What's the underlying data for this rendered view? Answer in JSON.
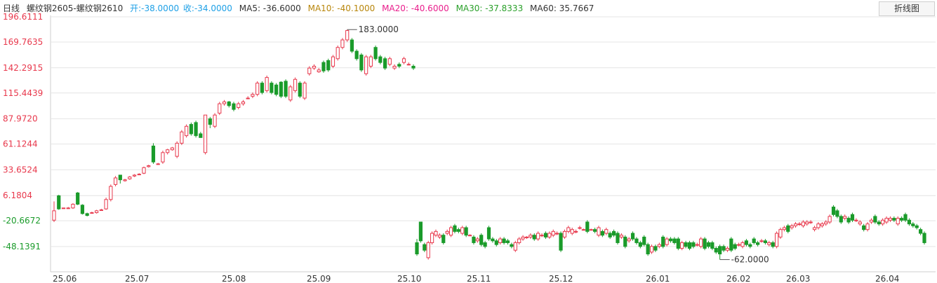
{
  "header": {
    "period": "日线",
    "symbol": "螺纹钢2605-螺纹钢2610",
    "open": "开:-38.0000",
    "close": "收:-34.0000",
    "ma5": "MA5: -36.6000",
    "ma10": "MA10: -40.1000",
    "ma20": "MA20: -40.6000",
    "ma30": "MA30: -37.8333",
    "ma60": "MA60: 35.7667"
  },
  "toolbar": {
    "switch_label": "折线图"
  },
  "colors": {
    "up": "#e8384c",
    "down": "#1a9b2a",
    "grid": "#e4e4e4",
    "axis_positive": "#e8384c",
    "axis_negative": "#1a9b2a",
    "ma5": "#333333",
    "ma10": "#b8860b",
    "ma20": "#e91e8c",
    "ma30": "#2aa02a",
    "ma60": "#333333"
  },
  "chart_data": {
    "type": "candlestick",
    "y_ticks": [
      "196.6111",
      "169.7635",
      "142.2915",
      "115.4439",
      "87.9720",
      "61.1244",
      "33.6524",
      "6.1804",
      "-20.6672",
      "-48.1391"
    ],
    "x_ticks": [
      "25.06",
      "25.07",
      "25.08",
      "25.09",
      "25.10",
      "25.11",
      "25.12",
      "26.01",
      "26.02",
      "26.03",
      "26.04"
    ],
    "ylim": [
      -75,
      205
    ],
    "max_annotation": "183.0000",
    "min_annotation": "-62.0000",
    "candles": [
      [
        -20,
        -10,
        -22,
        0
      ],
      [
        6,
        -8,
        -9,
        7
      ],
      [
        -7,
        -7,
        -7,
        -7
      ],
      [
        -7,
        -7,
        -8,
        -6
      ],
      [
        -7,
        -3,
        -8,
        -2
      ],
      [
        9,
        -3,
        -4,
        10
      ],
      [
        -4,
        -13,
        -14,
        -3
      ],
      [
        -13,
        -15,
        -16,
        -12
      ],
      [
        -12,
        -12,
        -13,
        -11
      ],
      [
        -12,
        -10,
        -13,
        -9
      ],
      [
        -9,
        -9,
        -10,
        -8
      ],
      [
        -8,
        2,
        -9,
        4
      ],
      [
        2,
        16,
        0,
        18
      ],
      [
        18,
        25,
        16,
        27
      ],
      [
        28,
        23,
        19,
        28
      ],
      [
        22,
        23,
        21,
        24
      ],
      [
        24,
        26,
        23,
        27
      ],
      [
        27,
        28,
        26,
        29
      ],
      [
        29,
        29,
        28,
        30
      ],
      [
        30,
        36,
        29,
        37
      ],
      [
        37,
        38,
        36,
        39
      ],
      [
        59,
        42,
        40,
        62
      ],
      [
        40,
        40,
        39,
        41
      ],
      [
        42,
        52,
        40,
        54
      ],
      [
        52,
        55,
        50,
        56
      ],
      [
        55,
        57,
        54,
        58
      ],
      [
        48,
        62,
        46,
        64
      ],
      [
        62,
        74,
        60,
        76
      ],
      [
        70,
        80,
        68,
        82
      ],
      [
        82,
        72,
        70,
        84
      ],
      [
        84,
        70,
        68,
        86
      ],
      [
        72,
        68,
        70,
        74
      ],
      [
        52,
        92,
        50,
        92
      ],
      [
        88,
        82,
        78,
        90
      ],
      [
        80,
        92,
        78,
        94
      ],
      [
        94,
        104,
        92,
        106
      ],
      [
        104,
        106,
        102,
        108
      ],
      [
        106,
        102,
        100,
        107
      ],
      [
        104,
        98,
        96,
        106
      ],
      [
        100,
        104,
        98,
        106
      ],
      [
        104,
        106,
        102,
        108
      ],
      [
        110,
        110,
        110,
        112
      ],
      [
        112,
        114,
        110,
        116
      ],
      [
        114,
        126,
        112,
        128
      ],
      [
        126,
        116,
        114,
        128
      ],
      [
        118,
        132,
        116,
        134
      ],
      [
        126,
        116,
        114,
        128
      ],
      [
        124,
        114,
        112,
        126
      ],
      [
        127,
        112,
        110,
        128
      ],
      [
        128,
        112,
        110,
        130
      ],
      [
        108,
        122,
        106,
        124
      ],
      [
        118,
        130,
        116,
        132
      ],
      [
        126,
        112,
        110,
        128
      ],
      [
        110,
        126,
        108,
        128
      ],
      [
        136,
        142,
        134,
        144
      ],
      [
        142,
        144,
        140,
        146
      ],
      [
        138,
        140,
        137,
        142
      ],
      [
        148,
        139,
        137,
        150
      ],
      [
        150,
        140,
        138,
        152
      ],
      [
        144,
        154,
        142,
        156
      ],
      [
        152,
        164,
        150,
        166
      ],
      [
        164,
        172,
        162,
        174
      ],
      [
        172,
        182,
        170,
        183
      ],
      [
        172,
        160,
        158,
        174
      ],
      [
        160,
        152,
        150,
        162
      ],
      [
        156,
        140,
        138,
        158
      ],
      [
        136,
        154,
        134,
        156
      ],
      [
        144,
        154,
        142,
        156
      ],
      [
        164,
        152,
        150,
        166
      ],
      [
        154,
        148,
        146,
        156
      ],
      [
        152,
        142,
        140,
        154
      ],
      [
        146,
        152,
        144,
        154
      ],
      [
        142,
        144,
        140,
        146
      ],
      [
        146,
        144,
        142,
        148
      ],
      [
        148,
        152,
        146,
        154
      ],
      [
        146,
        146,
        145,
        148
      ],
      [
        144,
        142,
        140,
        146
      ],
      [
        -44,
        -56,
        -58,
        -40
      ],
      [
        -22,
        -42,
        -44,
        -22
      ],
      [
        -46,
        -52,
        -54,
        -44
      ],
      [
        -60,
        -44,
        -62,
        -42
      ],
      [
        -44,
        -34,
        -46,
        -32
      ],
      [
        -36,
        -32,
        -38,
        -30
      ],
      [
        -38,
        -36,
        -40,
        -34
      ],
      [
        -36,
        -44,
        -46,
        -34
      ],
      [
        -34,
        -32,
        -36,
        -30
      ],
      [
        -36,
        -28,
        -38,
        -26
      ],
      [
        -26,
        -32,
        -34,
        -24
      ],
      [
        -30,
        -32,
        -34,
        -28
      ],
      [
        -34,
        -28,
        -36,
        -26
      ],
      [
        -28,
        -36,
        -38,
        -26
      ],
      [
        -36,
        -36,
        -37,
        -35
      ],
      [
        -38,
        -44,
        -46,
        -36
      ],
      [
        -42,
        -40,
        -44,
        -38
      ],
      [
        -36,
        -46,
        -48,
        -34
      ],
      [
        -44,
        -48,
        -50,
        -42
      ],
      [
        -28,
        -40,
        -42,
        -26
      ],
      [
        -40,
        -42,
        -44,
        -38
      ],
      [
        -42,
        -46,
        -48,
        -40
      ],
      [
        -44,
        -40,
        -46,
        -38
      ],
      [
        -40,
        -44,
        -46,
        -38
      ],
      [
        -42,
        -44,
        -46,
        -40
      ],
      [
        -46,
        -48,
        -50,
        -44
      ],
      [
        -52,
        -44,
        -54,
        -42
      ],
      [
        -44,
        -40,
        -46,
        -38
      ],
      [
        -40,
        -38,
        -42,
        -36
      ],
      [
        -38,
        -38,
        -40,
        -37
      ],
      [
        -38,
        -36,
        -40,
        -34
      ],
      [
        -36,
        -40,
        -42,
        -34
      ],
      [
        -40,
        -34,
        -42,
        -32
      ],
      [
        -36,
        -36,
        -38,
        -34
      ],
      [
        -34,
        -38,
        -40,
        -32
      ],
      [
        -38,
        -34,
        -40,
        -32
      ],
      [
        -36,
        -32,
        -38,
        -30
      ],
      [
        -34,
        -34,
        -36,
        -32
      ],
      [
        -34,
        -52,
        -54,
        -32
      ],
      [
        -38,
        -32,
        -40,
        -30
      ],
      [
        -32,
        -28,
        -34,
        -26
      ],
      [
        -34,
        -30,
        -36,
        -28
      ],
      [
        -32,
        -32,
        -34,
        -30
      ],
      [
        -28,
        -28,
        -30,
        -26
      ],
      [
        -30,
        -30,
        -31,
        -29
      ],
      [
        -22,
        -32,
        -34,
        -20
      ],
      [
        -30,
        -30,
        -31,
        -29
      ],
      [
        -30,
        -32,
        -34,
        -28
      ],
      [
        -36,
        -28,
        -38,
        -26
      ],
      [
        -32,
        -36,
        -38,
        -30
      ],
      [
        -34,
        -30,
        -36,
        -28
      ],
      [
        -34,
        -38,
        -40,
        -32
      ],
      [
        -32,
        -36,
        -38,
        -30
      ],
      [
        -34,
        -44,
        -46,
        -32
      ],
      [
        -38,
        -36,
        -40,
        -34
      ],
      [
        -38,
        -48,
        -50,
        -36
      ],
      [
        -42,
        -40,
        -44,
        -38
      ],
      [
        -34,
        -40,
        -42,
        -32
      ],
      [
        -40,
        -44,
        -46,
        -38
      ],
      [
        -44,
        -48,
        -50,
        -42
      ],
      [
        -38,
        -46,
        -48,
        -36
      ],
      [
        -46,
        -56,
        -58,
        -44
      ],
      [
        -54,
        -48,
        -56,
        -46
      ],
      [
        -48,
        -52,
        -54,
        -46
      ],
      [
        -48,
        -46,
        -50,
        -44
      ],
      [
        -38,
        -48,
        -50,
        -36
      ],
      [
        -46,
        -40,
        -48,
        -38
      ],
      [
        -40,
        -42,
        -44,
        -38
      ],
      [
        -40,
        -44,
        -46,
        -38
      ],
      [
        -40,
        -50,
        -52,
        -38
      ],
      [
        -50,
        -44,
        -52,
        -42
      ],
      [
        -44,
        -48,
        -50,
        -42
      ],
      [
        -44,
        -50,
        -52,
        -42
      ],
      [
        -44,
        -48,
        -50,
        -42
      ],
      [
        -46,
        -46,
        -48,
        -44
      ],
      [
        -48,
        -40,
        -50,
        -38
      ],
      [
        -40,
        -50,
        -52,
        -38
      ],
      [
        -44,
        -48,
        -50,
        -42
      ],
      [
        -44,
        -50,
        -52,
        -42
      ],
      [
        -50,
        -54,
        -56,
        -48
      ],
      [
        -48,
        -56,
        -62,
        -46
      ],
      [
        -48,
        -52,
        -54,
        -46
      ],
      [
        -52,
        -50,
        -54,
        -48
      ],
      [
        -40,
        -52,
        -54,
        -38
      ],
      [
        -46,
        -50,
        -52,
        -44
      ],
      [
        -46,
        -46,
        -48,
        -44
      ],
      [
        -48,
        -44,
        -50,
        -42
      ],
      [
        -42,
        -46,
        -48,
        -40
      ],
      [
        -46,
        -48,
        -50,
        -44
      ],
      [
        -40,
        -44,
        -46,
        -38
      ],
      [
        -44,
        -46,
        -48,
        -42
      ],
      [
        -42,
        -42,
        -44,
        -40
      ],
      [
        -42,
        -44,
        -46,
        -40
      ],
      [
        -46,
        -44,
        -48,
        -42
      ],
      [
        -44,
        -48,
        -50,
        -42
      ],
      [
        -48,
        -34,
        -50,
        -32
      ],
      [
        -38,
        -30,
        -40,
        -28
      ],
      [
        -30,
        -28,
        -32,
        -26
      ],
      [
        -26,
        -32,
        -34,
        -24
      ],
      [
        -28,
        -26,
        -30,
        -24
      ],
      [
        -26,
        -24,
        -28,
        -22
      ],
      [
        -24,
        -24,
        -26,
        -22
      ],
      [
        -26,
        -22,
        -28,
        -20
      ],
      [
        -24,
        -22,
        -26,
        -20
      ],
      [
        -22,
        -22,
        -24,
        -20
      ],
      [
        -30,
        -28,
        -32,
        -26
      ],
      [
        -28,
        -24,
        -30,
        -22
      ],
      [
        -26,
        -24,
        -28,
        -22
      ],
      [
        -24,
        -22,
        -26,
        -20
      ],
      [
        -22,
        -16,
        -24,
        -14
      ],
      [
        -6,
        -14,
        -16,
        -4
      ],
      [
        -10,
        -16,
        -18,
        -8
      ],
      [
        -16,
        -22,
        -24,
        -14
      ],
      [
        -18,
        -16,
        -20,
        -14
      ],
      [
        -18,
        -22,
        -24,
        -16
      ],
      [
        -14,
        -20,
        -22,
        -12
      ],
      [
        -20,
        -20,
        -22,
        -18
      ],
      [
        -24,
        -22,
        -26,
        -20
      ],
      [
        -26,
        -30,
        -32,
        -24
      ],
      [
        -30,
        -24,
        -32,
        -22
      ],
      [
        -22,
        -20,
        -24,
        -18
      ],
      [
        -16,
        -22,
        -24,
        -14
      ],
      [
        -22,
        -24,
        -26,
        -20
      ],
      [
        -24,
        -20,
        -26,
        -18
      ],
      [
        -22,
        -18,
        -24,
        -16
      ],
      [
        -20,
        -18,
        -22,
        -16
      ],
      [
        -18,
        -20,
        -22,
        -16
      ],
      [
        -24,
        -18,
        -26,
        -16
      ],
      [
        -18,
        -20,
        -22,
        -16
      ],
      [
        -14,
        -20,
        -22,
        -12
      ],
      [
        -20,
        -24,
        -26,
        -18
      ],
      [
        -24,
        -26,
        -28,
        -22
      ],
      [
        -26,
        -28,
        -30,
        -24
      ],
      [
        -30,
        -34,
        -36,
        -28
      ],
      [
        -34,
        -44,
        -46,
        -32
      ]
    ]
  }
}
